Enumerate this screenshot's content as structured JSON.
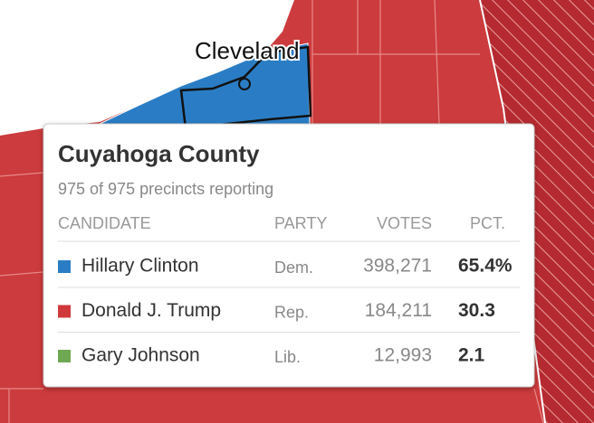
{
  "map": {
    "city_label": "Cleveland"
  },
  "tooltip": {
    "title": "Cuyahoga County",
    "subtitle": "975 of 975 precincts reporting",
    "headers": [
      "CANDIDATE",
      "PARTY",
      "VOTES",
      "PCT."
    ],
    "rows": [
      {
        "color": "#2a7dc5",
        "candidate": "Hillary Clinton",
        "party": "Dem.",
        "votes": "398,271",
        "pct": "65.4%"
      },
      {
        "color": "#d0393b",
        "candidate": "Donald J. Trump",
        "party": "Rep.",
        "votes": "184,211",
        "pct": "30.3"
      },
      {
        "color": "#6fa852",
        "candidate": "Gary Johnson",
        "party": "Lib.",
        "votes": "12,993",
        "pct": "2.1"
      }
    ]
  }
}
